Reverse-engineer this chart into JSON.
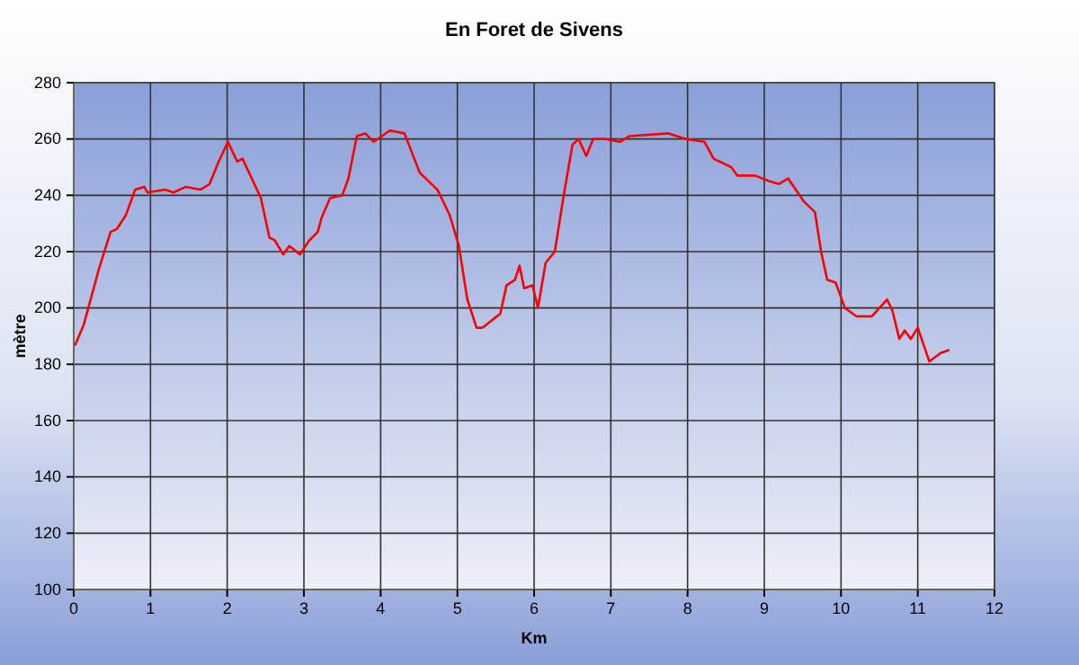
{
  "chart_data": {
    "type": "line",
    "title": "En Foret de Sivens",
    "xlabel": "Km",
    "ylabel": "mètre",
    "xlim": [
      0,
      12
    ],
    "ylim": [
      100,
      280
    ],
    "xticks": [
      0,
      1,
      2,
      3,
      4,
      5,
      6,
      7,
      8,
      9,
      10,
      11,
      12
    ],
    "yticks": [
      100,
      120,
      140,
      160,
      180,
      200,
      220,
      240,
      260,
      280
    ],
    "grid": true,
    "marker": "none",
    "line_style": "solid",
    "series": [
      {
        "color": "#ff0000",
        "x": [
          0.02,
          0.13,
          0.33,
          0.48,
          0.56,
          0.68,
          0.8,
          0.92,
          0.96,
          1.19,
          1.3,
          1.46,
          1.65,
          1.77,
          1.89,
          2.01,
          2.13,
          2.2,
          2.32,
          2.44,
          2.55,
          2.62,
          2.73,
          2.81,
          2.95,
          3.07,
          3.18,
          3.23,
          3.34,
          3.5,
          3.58,
          3.69,
          3.8,
          3.91,
          4.12,
          4.31,
          4.51,
          4.74,
          4.9,
          5.02,
          5.13,
          5.25,
          5.33,
          5.56,
          5.64,
          5.75,
          5.81,
          5.87,
          5.98,
          6.05,
          6.15,
          6.27,
          6.38,
          6.5,
          6.58,
          6.68,
          6.77,
          6.93,
          7.12,
          7.24,
          7.75,
          7.98,
          8.22,
          8.34,
          8.57,
          8.65,
          8.88,
          9.07,
          9.19,
          9.31,
          9.51,
          9.66,
          9.74,
          9.82,
          9.93,
          10.05,
          10.2,
          10.4,
          10.6,
          10.67,
          10.76,
          10.83,
          10.91,
          11.0,
          11.15,
          11.3,
          11.4
        ],
        "values": [
          187,
          194,
          214,
          227,
          228,
          233,
          242,
          243,
          241,
          242,
          241,
          243,
          242,
          244,
          252,
          259,
          252,
          253,
          246,
          239,
          225,
          224,
          219,
          222,
          219,
          224,
          227,
          232,
          239,
          240,
          246,
          261,
          262,
          259,
          263,
          262,
          248,
          242,
          233,
          222,
          203,
          193,
          193,
          198,
          208,
          210,
          215,
          207,
          208,
          200,
          216,
          220,
          239,
          258,
          260,
          254,
          260,
          260,
          259,
          261,
          262,
          260,
          259,
          253,
          250,
          247,
          247,
          245,
          244,
          246,
          238,
          234,
          220,
          210,
          209,
          200,
          197,
          197,
          203,
          199,
          189,
          192,
          189,
          193,
          181,
          184,
          185
        ]
      }
    ]
  }
}
